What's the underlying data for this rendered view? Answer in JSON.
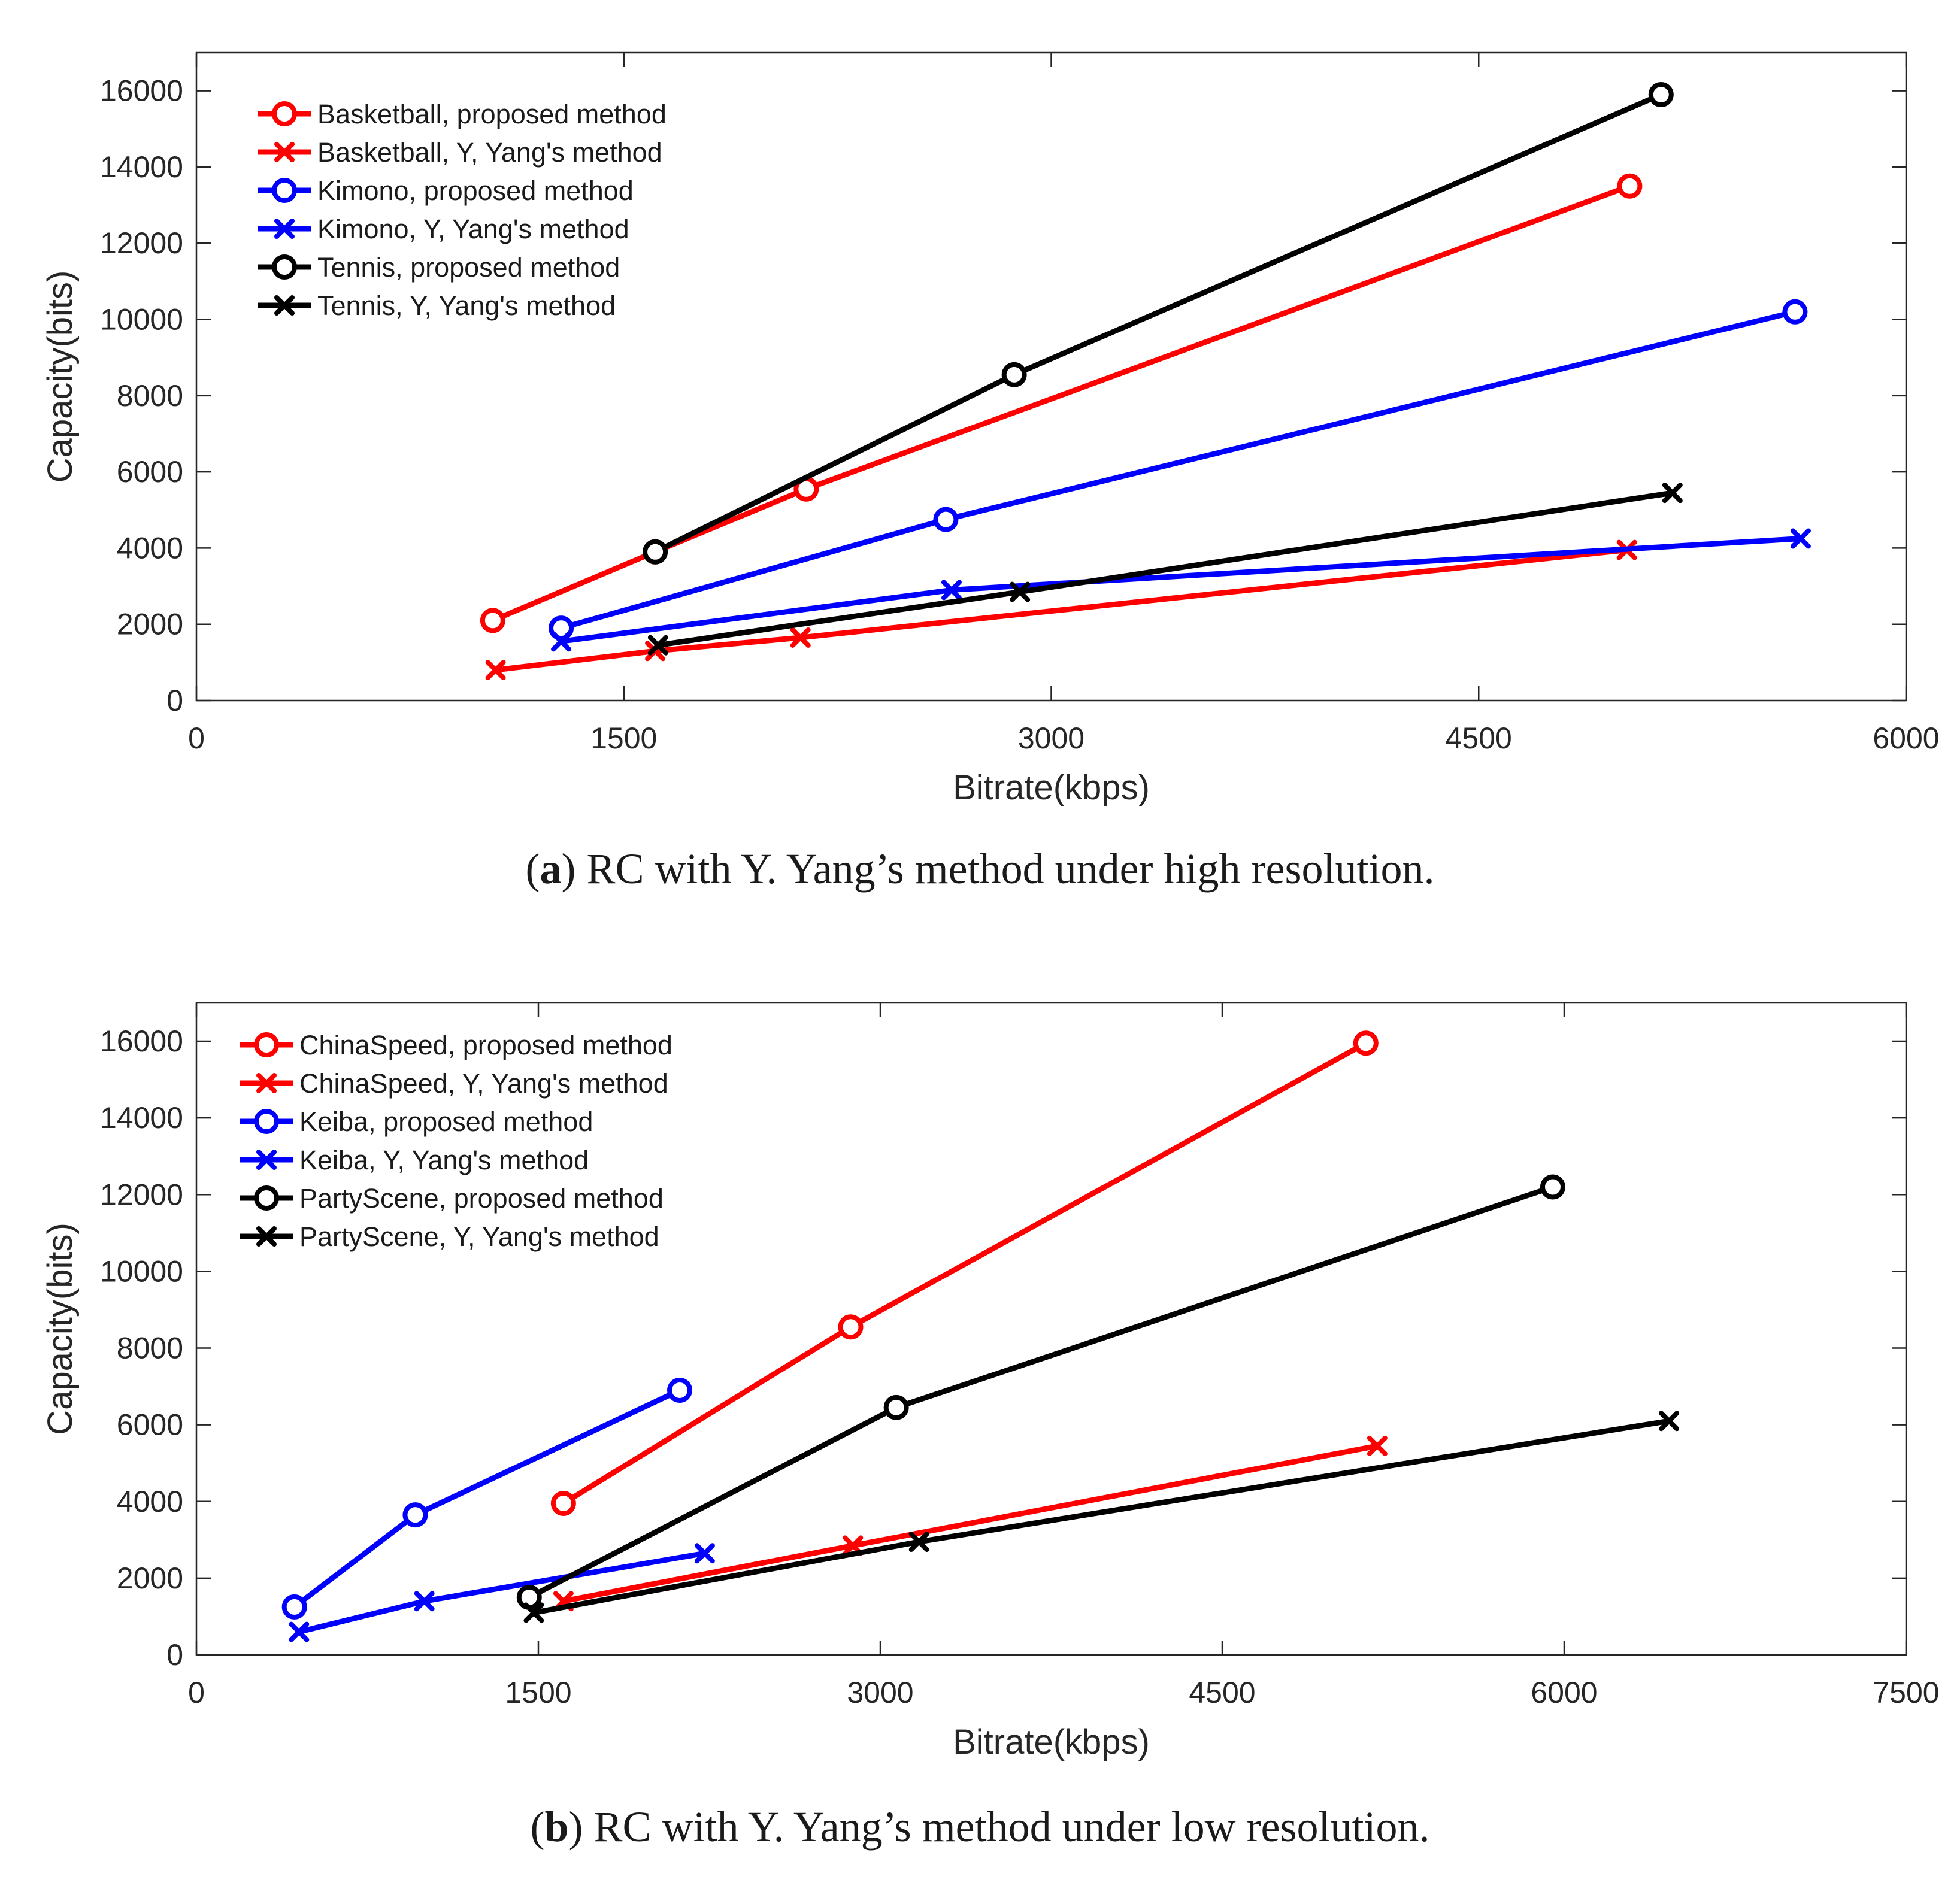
{
  "figures": [
    {
      "id": "a",
      "caption_letter": "a",
      "caption_text": ") RC with Y. Yang’s method under high resolution.",
      "chart_data": {
        "type": "line",
        "xlabel": "Bitrate(kbps)",
        "ylabel": "Capacity(bits)",
        "xlim": [
          0,
          6000
        ],
        "ylim": [
          0,
          17000
        ],
        "xticks": [
          0,
          1500,
          3000,
          4500,
          6000
        ],
        "yticks": [
          0,
          2000,
          4000,
          6000,
          8000,
          10000,
          12000,
          14000,
          16000
        ],
        "grid": false,
        "legend_position": "top-left",
        "series": [
          {
            "name": "Basketball, proposed method",
            "color": "#ff0000",
            "marker": "circle",
            "x": [
              1040,
              1610,
              2140,
              5030
            ],
            "y": [
              2100,
              3900,
              5550,
              13500
            ]
          },
          {
            "name": "Basketball, Y, Yang's method",
            "color": "#ff0000",
            "marker": "x",
            "x": [
              1050,
              1610,
              2120,
              5020
            ],
            "y": [
              800,
              1300,
              1650,
              3950
            ]
          },
          {
            "name": "Kimono, proposed method",
            "color": "#0000ff",
            "marker": "circle",
            "x": [
              1280,
              2630,
              5610
            ],
            "y": [
              1900,
              4750,
              10200
            ]
          },
          {
            "name": "Kimono, Y, Yang's method",
            "color": "#0000ff",
            "marker": "x",
            "x": [
              1280,
              2650,
              5630
            ],
            "y": [
              1550,
              2900,
              4250
            ]
          },
          {
            "name": "Tennis, proposed method",
            "color": "#000000",
            "marker": "circle",
            "x": [
              1610,
              2870,
              5140
            ],
            "y": [
              3900,
              8550,
              15900
            ]
          },
          {
            "name": "Tennis, Y, Yang's method",
            "color": "#000000",
            "marker": "x",
            "x": [
              1620,
              2890,
              5180
            ],
            "y": [
              1450,
              2850,
              5450
            ]
          }
        ]
      }
    },
    {
      "id": "b",
      "caption_letter": "b",
      "caption_text": ") RC with Y. Yang’s method under low resolution.",
      "chart_data": {
        "type": "line",
        "xlabel": "Bitrate(kbps)",
        "ylabel": "Capacity(bits)",
        "xlim": [
          0,
          7500
        ],
        "ylim": [
          0,
          17000
        ],
        "xticks": [
          0,
          1500,
          3000,
          4500,
          6000,
          7500
        ],
        "yticks": [
          0,
          2000,
          4000,
          6000,
          8000,
          10000,
          12000,
          14000,
          16000
        ],
        "grid": false,
        "legend_position": "top-left",
        "series": [
          {
            "name": "ChinaSpeed, proposed method",
            "color": "#ff0000",
            "marker": "circle",
            "x": [
              1610,
              2870,
              5130
            ],
            "y": [
              3950,
              8550,
              15950
            ]
          },
          {
            "name": "ChinaSpeed, Y, Yang's method",
            "color": "#ff0000",
            "marker": "x",
            "x": [
              1610,
              2880,
              5180
            ],
            "y": [
              1400,
              2850,
              5450
            ]
          },
          {
            "name": "Keiba, proposed method",
            "color": "#0000ff",
            "marker": "circle",
            "x": [
              430,
              960,
              2120
            ],
            "y": [
              1250,
              3650,
              6900
            ]
          },
          {
            "name": "Keiba, Y, Yang's method",
            "color": "#0000ff",
            "marker": "x",
            "x": [
              450,
              1000,
              2230
            ],
            "y": [
              600,
              1400,
              2650
            ]
          },
          {
            "name": "PartyScene, proposed method",
            "color": "#000000",
            "marker": "circle",
            "x": [
              1460,
              3070,
              5950
            ],
            "y": [
              1500,
              6450,
              12200
            ]
          },
          {
            "name": "PartyScene, Y, Yang's method",
            "color": "#000000",
            "marker": "x",
            "x": [
              1480,
              3170,
              6460
            ],
            "y": [
              1100,
              2950,
              6100
            ]
          }
        ]
      }
    }
  ]
}
